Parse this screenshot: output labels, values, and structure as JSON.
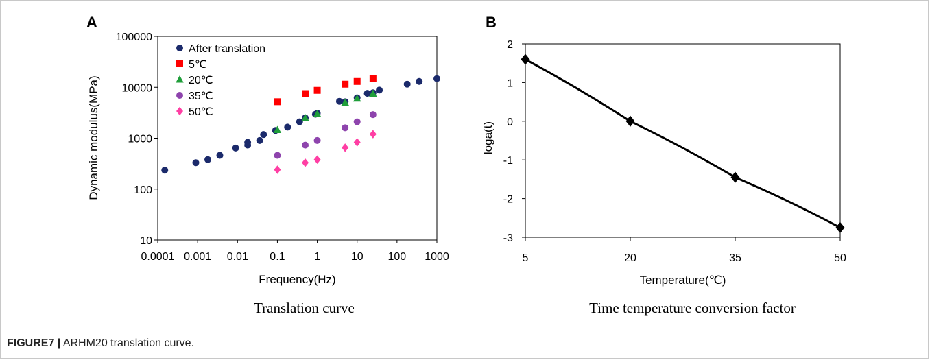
{
  "figure": {
    "caption_label": "FIGURE7 |",
    "caption_text": "ARHM20 translation curve."
  },
  "chart_data": [
    {
      "panel": "A",
      "type": "scatter",
      "subtitle": "Translation curve",
      "xlabel": "Frequency(Hz)",
      "ylabel": "Dynamic modulus(MPa)",
      "xscale": "log",
      "yscale": "log",
      "xlim": [
        0.0001,
        1000
      ],
      "ylim": [
        10,
        100000
      ],
      "xticks": [
        "0.0001",
        "0.001",
        "0.01",
        "0.1",
        "1",
        "10",
        "100",
        "1000"
      ],
      "yticks": [
        "10",
        "100",
        "1000",
        "10000",
        "100000"
      ],
      "grid": false,
      "legend_position": "top-left",
      "series": [
        {
          "name": "After translation",
          "color": "#1b2a6b",
          "marker": "circle",
          "points": [
            [
              0.00015,
              235
            ],
            [
              0.0009,
              330
            ],
            [
              0.0018,
              380
            ],
            [
              0.0036,
              460
            ],
            [
              0.009,
              640
            ],
            [
              0.018,
              730
            ],
            [
              0.018,
              830
            ],
            [
              0.036,
              900
            ],
            [
              0.045,
              1180
            ],
            [
              0.09,
              1420
            ],
            [
              0.18,
              1650
            ],
            [
              0.36,
              2100
            ],
            [
              0.5,
              2500
            ],
            [
              0.9,
              2950
            ],
            [
              1,
              3100
            ],
            [
              3.6,
              5300
            ],
            [
              5,
              5200
            ],
            [
              10,
              6200
            ],
            [
              18,
              7600
            ],
            [
              25,
              7800
            ],
            [
              36,
              8800
            ],
            [
              180,
              11500
            ],
            [
              360,
              13000
            ],
            [
              1000,
              14800
            ]
          ]
        },
        {
          "name": "5℃",
          "color": "#ff0000",
          "marker": "square",
          "points": [
            [
              0.1,
              5200
            ],
            [
              0.5,
              7500
            ],
            [
              1,
              8700
            ],
            [
              5,
              11500
            ],
            [
              10,
              13000
            ],
            [
              25,
              14800
            ]
          ]
        },
        {
          "name": "20℃",
          "color": "#1f9e3a",
          "marker": "triangle",
          "points": [
            [
              0.1,
              1450
            ],
            [
              0.5,
              2500
            ],
            [
              1,
              3000
            ],
            [
              5,
              5000
            ],
            [
              10,
              6000
            ],
            [
              25,
              7500
            ]
          ]
        },
        {
          "name": "35℃",
          "color": "#8e44ad",
          "marker": "circle",
          "points": [
            [
              0.1,
              460
            ],
            [
              0.5,
              730
            ],
            [
              1,
              900
            ],
            [
              5,
              1600
            ],
            [
              10,
              2100
            ],
            [
              25,
              2900
            ]
          ]
        },
        {
          "name": "50℃",
          "color": "#ff3fa4",
          "marker": "diamond",
          "points": [
            [
              0.1,
              240
            ],
            [
              0.5,
              330
            ],
            [
              1,
              380
            ],
            [
              5,
              650
            ],
            [
              10,
              830
            ],
            [
              25,
              1200
            ]
          ]
        }
      ]
    },
    {
      "panel": "B",
      "type": "line",
      "subtitle": "Time temperature conversion factor",
      "xlabel": "Temperature(℃)",
      "ylabel": "loga(t)",
      "x": [
        5,
        20,
        35,
        50
      ],
      "xticks": [
        "5",
        "20",
        "35",
        "50"
      ],
      "xlim": [
        5,
        50
      ],
      "ylim": [
        -3,
        2
      ],
      "yticks": [
        "2",
        "1",
        "0",
        "-1",
        "-2",
        "-3"
      ],
      "grid": false,
      "series": [
        {
          "color": "#000000",
          "marker": "diamond",
          "values": [
            1.6,
            0,
            -1.45,
            -2.75
          ]
        }
      ]
    }
  ]
}
